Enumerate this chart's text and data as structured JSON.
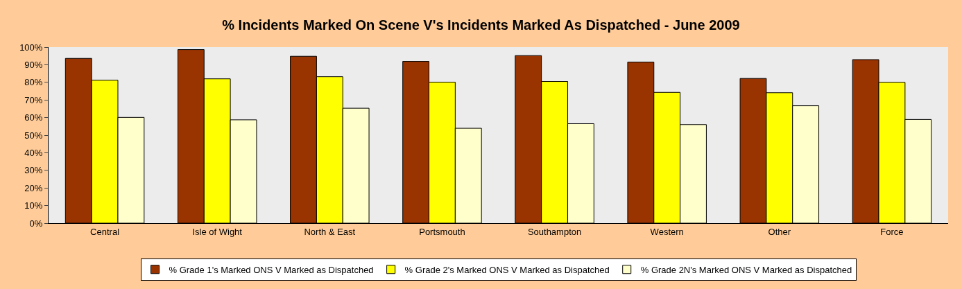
{
  "chart_data": {
    "type": "bar",
    "title": "% Incidents Marked On Scene V's Incidents Marked As Dispatched - June 2009",
    "categories": [
      "Central",
      "Isle of Wight",
      "North & East",
      "Portsmouth",
      "Southampton",
      "Western",
      "Other",
      "Force"
    ],
    "series": [
      {
        "name": "% Grade 1's Marked ONS V Marked as Dispatched",
        "color": "#993300",
        "values": [
          93.6,
          98.6,
          94.8,
          91.9,
          95.2,
          91.5,
          82.2,
          92.9
        ]
      },
      {
        "name": "% Grade 2's Marked ONS V Marked as Dispatched",
        "color": "#ffff00",
        "values": [
          81.2,
          82.0,
          83.2,
          80.1,
          80.5,
          74.3,
          74.1,
          80.0
        ]
      },
      {
        "name": "% Grade 2N's Marked ONS V Marked as Dispatched",
        "color": "#ffffcc",
        "values": [
          60.1,
          58.7,
          65.3,
          53.9,
          56.5,
          56.0,
          66.7,
          58.9
        ]
      }
    ],
    "ylim": [
      0,
      100
    ],
    "yticks": [
      {
        "value": 0,
        "label": "0%"
      },
      {
        "value": 10,
        "label": "10%"
      },
      {
        "value": 20,
        "label": "20%"
      },
      {
        "value": 30,
        "label": "30%"
      },
      {
        "value": 40,
        "label": "40%"
      },
      {
        "value": 50,
        "label": "50%"
      },
      {
        "value": 60,
        "label": "60%"
      },
      {
        "value": 70,
        "label": "70%"
      },
      {
        "value": 80,
        "label": "80%"
      },
      {
        "value": 90,
        "label": "90%"
      },
      {
        "value": 100,
        "label": "100%"
      }
    ],
    "grid": false,
    "legend": "bottom"
  }
}
